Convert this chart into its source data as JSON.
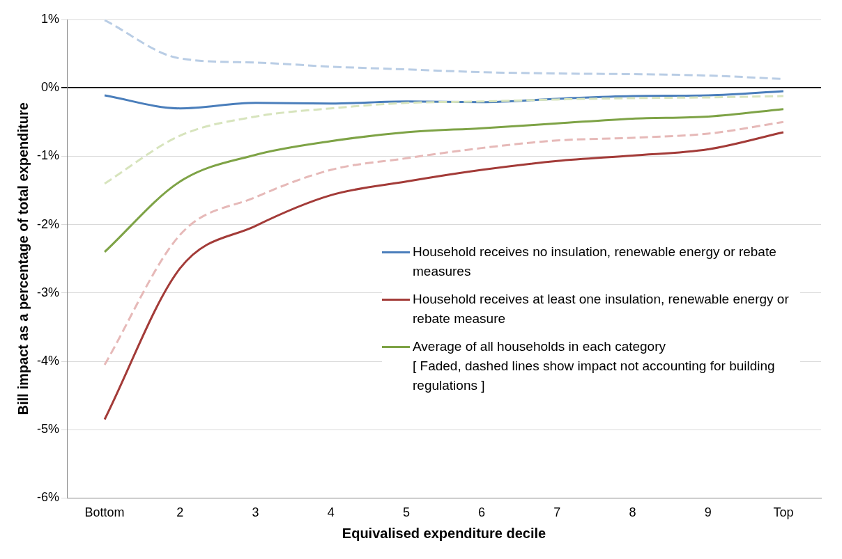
{
  "chart_data": {
    "type": "line",
    "xlabel": "Equivalised expenditure decile",
    "ylabel": "Bill impact as a percentage of total expenditure",
    "categories": [
      "Bottom",
      "2",
      "3",
      "4",
      "5",
      "6",
      "7",
      "8",
      "9",
      "Top"
    ],
    "ylim": [
      -6,
      1
    ],
    "yticks": [
      {
        "value": -6,
        "label": "-6%"
      },
      {
        "value": -5,
        "label": "-5%"
      },
      {
        "value": -4,
        "label": "-4%"
      },
      {
        "value": -3,
        "label": "-3%"
      },
      {
        "value": -2,
        "label": "-2%"
      },
      {
        "value": -1,
        "label": "-1%"
      },
      {
        "value": 0,
        "label": "0%"
      },
      {
        "value": 1,
        "label": "1%"
      }
    ],
    "grid": "y",
    "legend": "right",
    "marker": "none",
    "series": [
      {
        "name": "Household receives no insulation, renewable energy or rebate measures",
        "color": "#4a7ebb",
        "line_style": "solid",
        "values": [
          -0.11,
          -0.3,
          -0.22,
          -0.23,
          -0.2,
          -0.21,
          -0.16,
          -0.12,
          -0.11,
          -0.05
        ]
      },
      {
        "name": "Household receives at least one insulation, renewable energy or rebate measure",
        "color": "#a33b38",
        "line_style": "solid",
        "values": [
          -4.85,
          -2.64,
          -2.02,
          -1.57,
          -1.37,
          -1.2,
          -1.07,
          -0.99,
          -0.9,
          -0.65
        ]
      },
      {
        "name": "Average of all households in each category",
        "color": "#7ea346",
        "line_style": "solid",
        "values": [
          -2.4,
          -1.37,
          -0.98,
          -0.78,
          -0.65,
          -0.59,
          -0.52,
          -0.45,
          -0.42,
          -0.31
        ]
      },
      {
        "color": "#b9cde5",
        "line_style": "dashed",
        "values": [
          0.99,
          0.43,
          0.37,
          0.31,
          0.27,
          0.23,
          0.21,
          0.2,
          0.18,
          0.13
        ]
      },
      {
        "color": "#e6b9b8",
        "line_style": "dashed",
        "values": [
          -4.05,
          -2.15,
          -1.6,
          -1.2,
          -1.03,
          -0.88,
          -0.77,
          -0.73,
          -0.67,
          -0.5
        ]
      },
      {
        "color": "#d7e4bd",
        "line_style": "dashed",
        "values": [
          -1.4,
          -0.7,
          -0.42,
          -0.3,
          -0.22,
          -0.2,
          -0.17,
          -0.15,
          -0.14,
          -0.12
        ]
      }
    ],
    "annotations": [
      "[ Faded, dashed lines show impact not accounting for building regulations ]"
    ]
  }
}
